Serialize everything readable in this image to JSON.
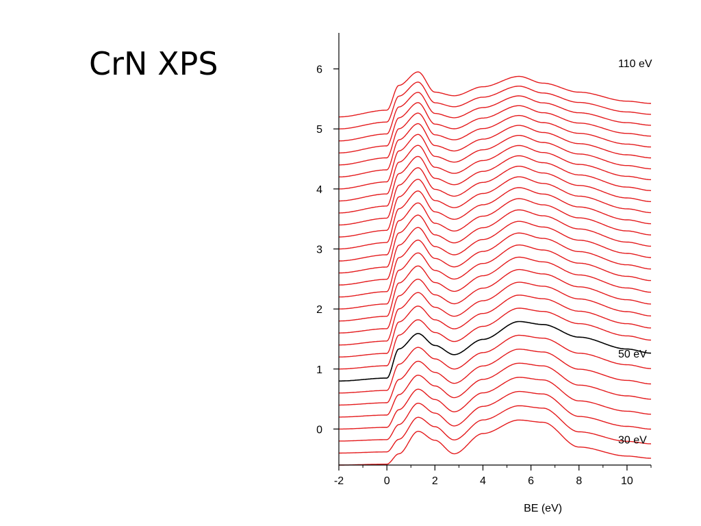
{
  "slide": {
    "title": "CrN XPS"
  },
  "chart_data": {
    "type": "line",
    "title": "",
    "xlabel": "BE (eV)",
    "ylabel": "",
    "xlim": [
      -2,
      11
    ],
    "ylim": [
      -0.6,
      6.6
    ],
    "xticks": [
      -2,
      0,
      2,
      4,
      6,
      8,
      10
    ],
    "yticks": [
      0,
      1,
      2,
      3,
      4,
      5,
      6
    ],
    "grid": false,
    "legend": "none",
    "colors": {
      "default": "#e41a1c",
      "highlight": "#000000"
    },
    "offset_step": 0.2,
    "series_count": 30,
    "base_offset": -0.6,
    "highlight_series": {
      "label": "50 eV",
      "index": 7
    },
    "annotations": [
      {
        "text": "110 eV",
        "series_index": 29,
        "x": 11.0,
        "y": 6.1
      },
      {
        "text": "50 eV",
        "series_index": 7,
        "x": 11.0,
        "y": 1.26
      },
      {
        "text": "30 eV",
        "series_index": 2,
        "x": 11.0,
        "y": -0.17
      }
    ],
    "representative_profiles": {
      "x": [
        -2,
        0,
        0.5,
        1.3,
        2,
        2.8,
        4,
        5.5,
        6.5,
        8,
        10,
        11
      ],
      "bottom_30eV": [
        0.0,
        0.02,
        0.25,
        0.75,
        0.55,
        0.25,
        0.7,
        1.0,
        0.95,
        0.4,
        0.2,
        0.15
      ],
      "highlight_50eV": [
        0.0,
        0.05,
        0.55,
        0.8,
        0.6,
        0.45,
        0.7,
        1.0,
        0.95,
        0.75,
        0.55,
        0.48
      ],
      "top_110eV": [
        0.0,
        0.15,
        0.7,
        1.0,
        0.55,
        0.47,
        0.67,
        0.9,
        0.75,
        0.55,
        0.35,
        0.3
      ]
    }
  }
}
